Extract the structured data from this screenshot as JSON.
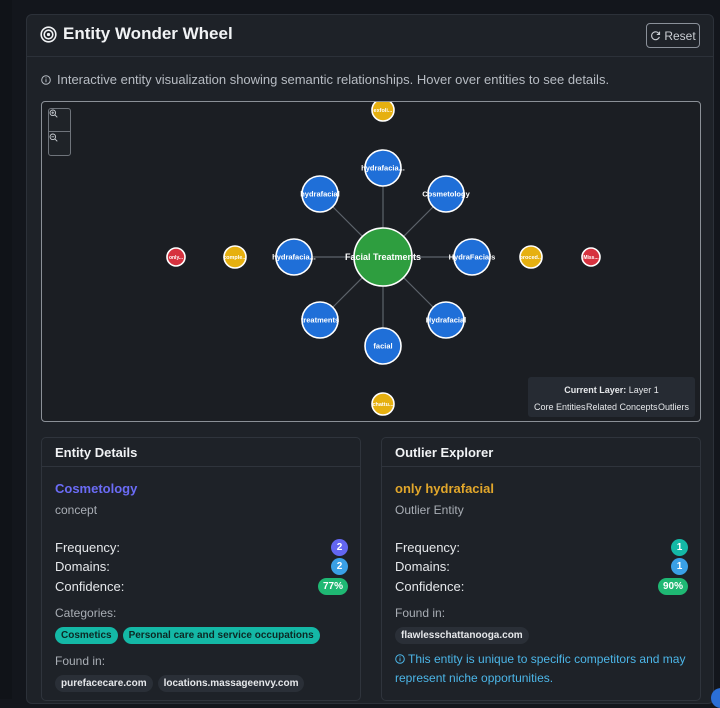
{
  "header": {
    "title": "Entity Wonder Wheel",
    "reset_label": "Reset"
  },
  "info_text": "Interactive entity visualization showing semantic relationships. Hover over entities to see details.",
  "colors": {
    "core": "#2e9e3f",
    "related": "#1f6fd8",
    "concept_yellow": "#e6b010",
    "outlier_red": "#d6323f",
    "accent_purple": "#6b6cf6",
    "accent_orange": "#e2a72b"
  },
  "wheel": {
    "center": {
      "label": "Facial Treatments"
    },
    "ring1": [
      {
        "label": "hydrafacia..."
      },
      {
        "label": "Cosmetology"
      },
      {
        "label": "HydraFacials"
      },
      {
        "label": "Hydrafacial"
      },
      {
        "label": "facial"
      },
      {
        "label": "treatments"
      },
      {
        "label": "hydrafacia..."
      },
      {
        "label": "hydrafacial"
      }
    ],
    "ring2": [
      {
        "label": "exfoli..."
      },
      {
        "label": "proced..."
      },
      {
        "label": "chattu..."
      },
      {
        "label": "comple..."
      }
    ],
    "ring3": [
      {
        "label": "Miss..."
      },
      {
        "label": "only..."
      }
    ]
  },
  "legend": {
    "current_label": "Current Layer:",
    "current_value": "Layer 1",
    "items": [
      "Core Entities",
      "Related Concepts",
      "Outliers"
    ]
  },
  "entity_details": {
    "panel_title": "Entity Details",
    "name": "Cosmetology",
    "type": "concept",
    "frequency_label": "Frequency:",
    "frequency": "2",
    "domains_label": "Domains:",
    "domains": "2",
    "confidence_label": "Confidence:",
    "confidence": "77%",
    "categories_label": "Categories:",
    "categories": [
      "Cosmetics",
      "Personal care and service occupations"
    ],
    "found_in_label": "Found in:",
    "found_in": [
      "purefacecare.com",
      "locations.massageenvy.com"
    ]
  },
  "outlier_explorer": {
    "panel_title": "Outlier Explorer",
    "name": "only hydrafacial",
    "type": "Outlier Entity",
    "frequency_label": "Frequency:",
    "frequency": "1",
    "domains_label": "Domains:",
    "domains": "1",
    "confidence_label": "Confidence:",
    "confidence": "90%",
    "found_in_label": "Found in:",
    "found_in": [
      "flawlesschattanooga.com"
    ],
    "note": "This entity is unique to specific competitors and may represent niche opportunities."
  }
}
